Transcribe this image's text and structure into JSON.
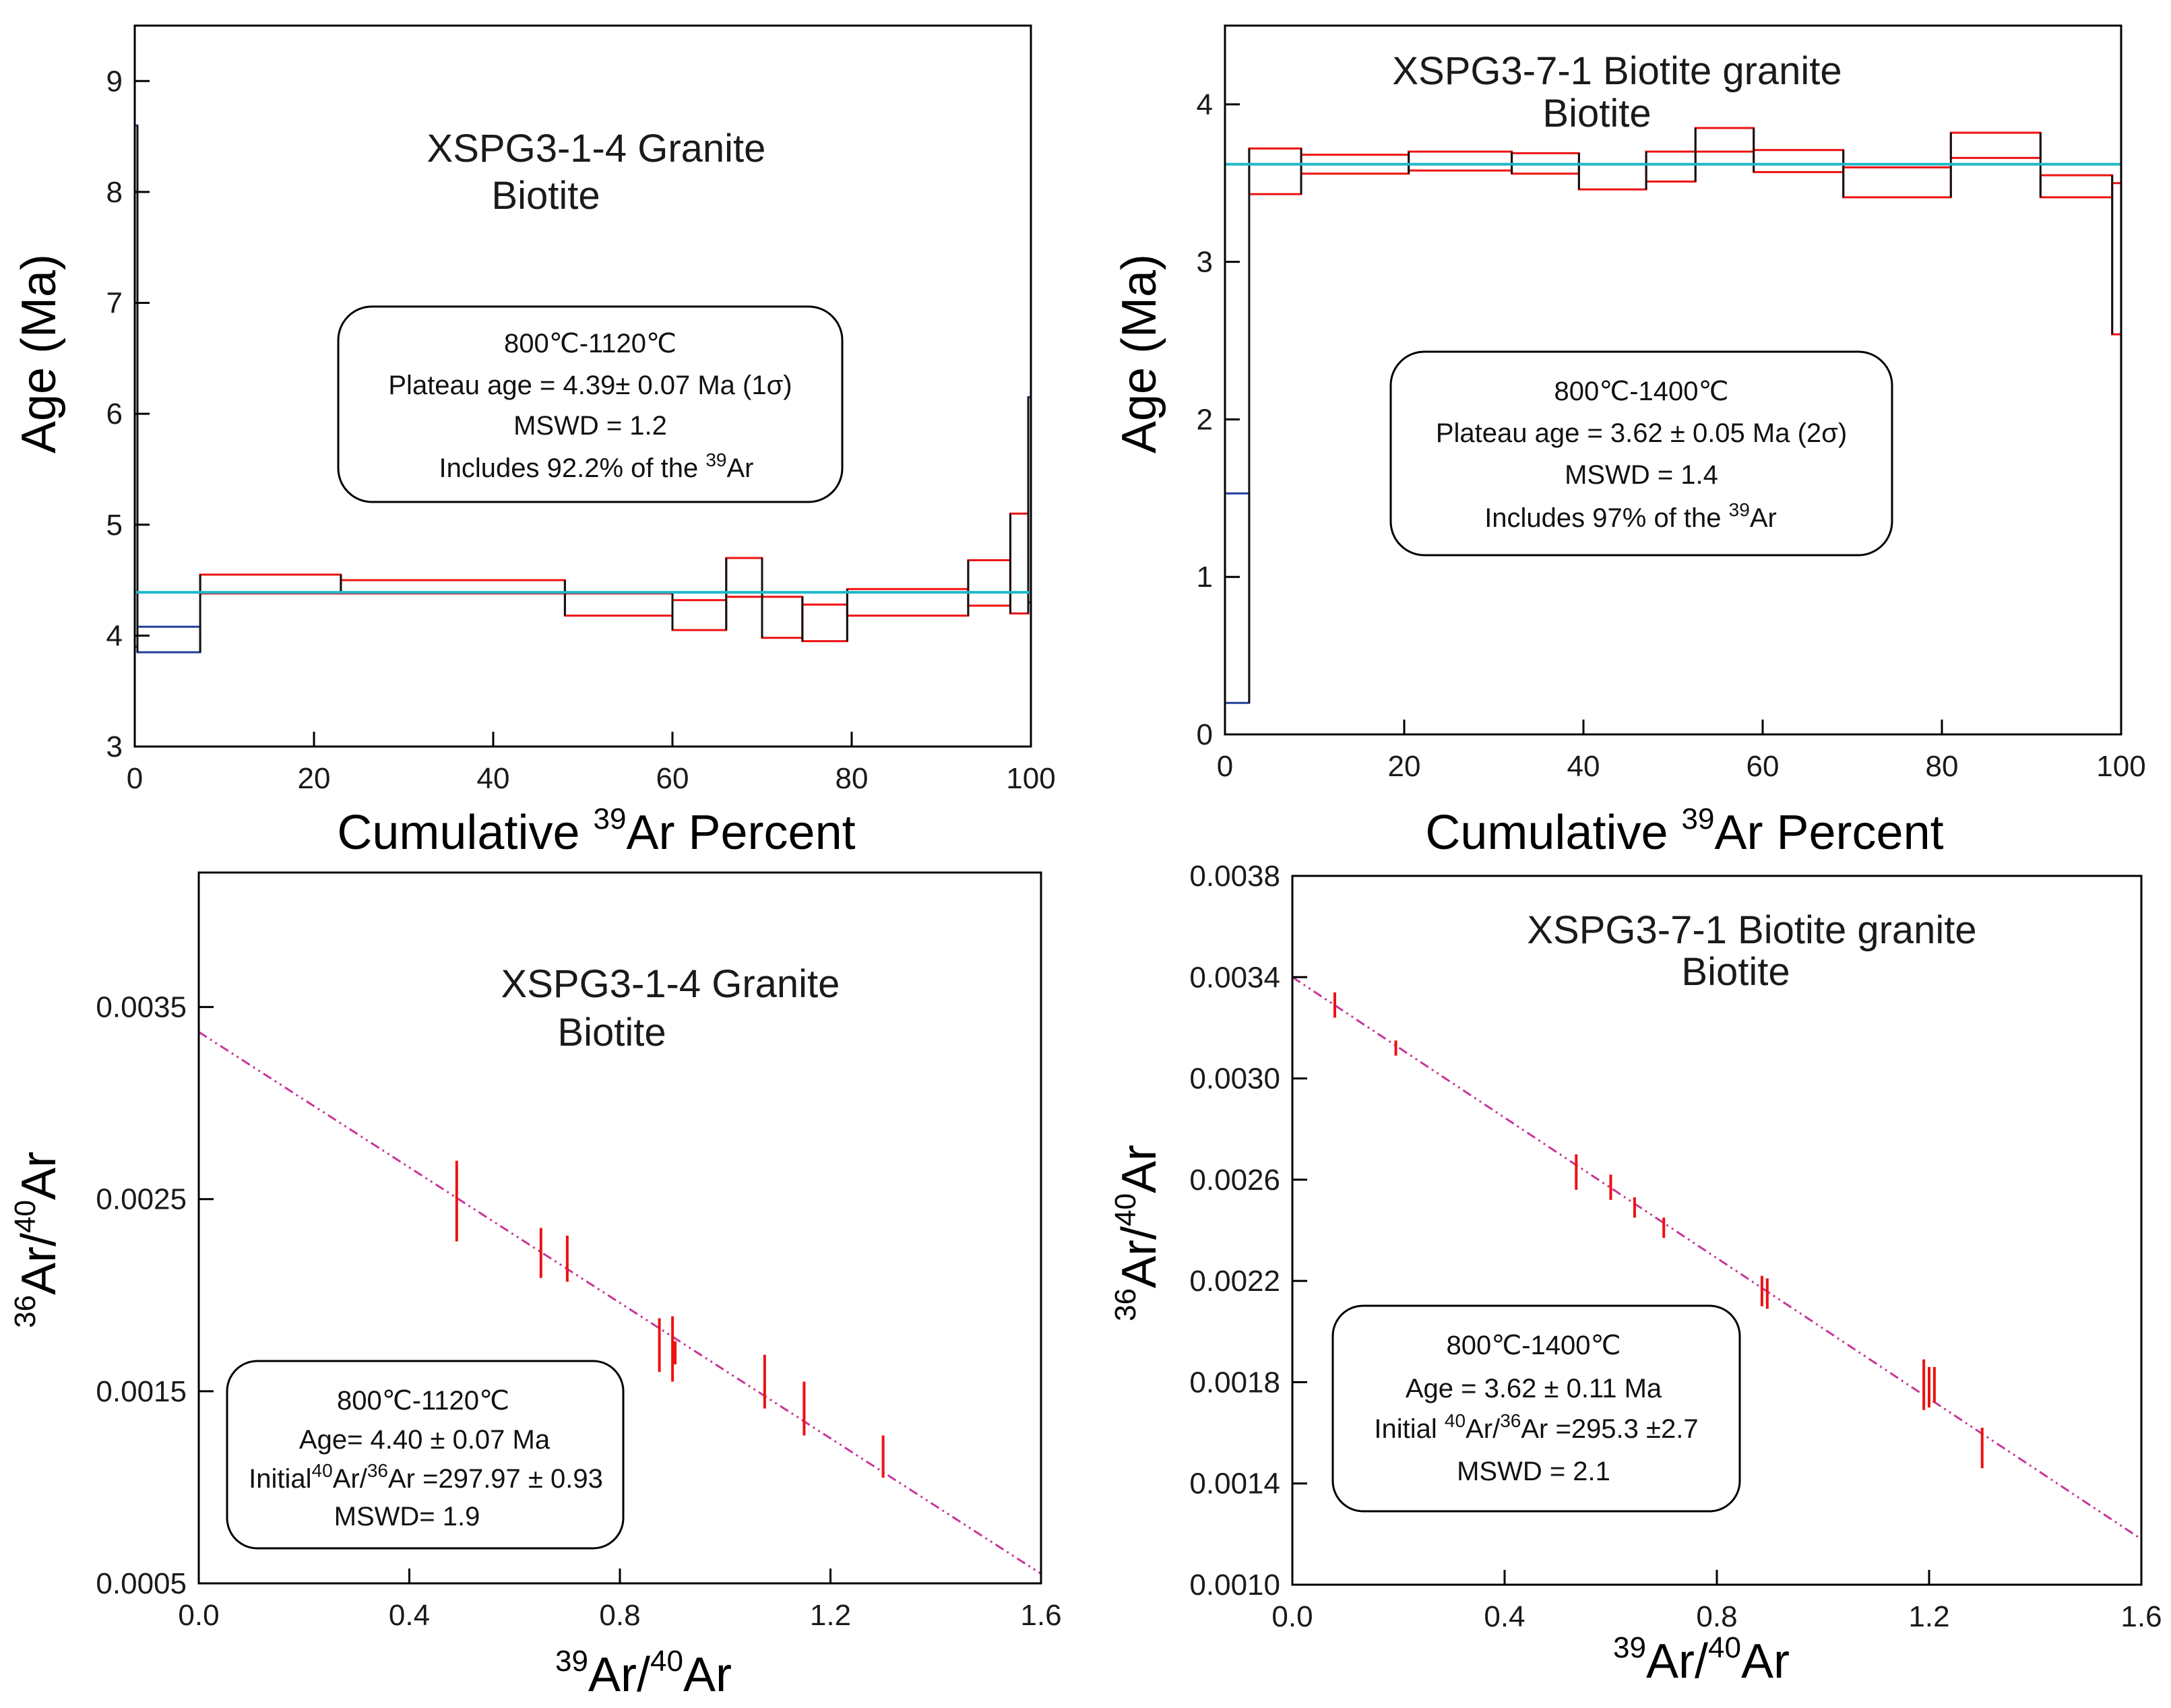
{
  "chart_data": [
    {
      "id": "c1",
      "type": "step",
      "title_lines": [
        "XSPG3-1-4 Granite",
        "Biotite"
      ],
      "xlabel_main": "Cumulative ",
      "xlabel_sup": "39",
      "xlabel_tail": "Ar Percent",
      "ylabel": "Age (Ma)",
      "xlim": [
        0,
        100
      ],
      "ylim": [
        3,
        9.5
      ],
      "xticks": [
        0,
        20,
        40,
        60,
        80,
        100
      ],
      "yticks": [
        3,
        4,
        5,
        6,
        7,
        8,
        9
      ],
      "plateau": 4.39,
      "plateau_color": "#1fb8c8",
      "steps": [
        {
          "x0": 0,
          "x1": 0.3,
          "lo": 3.9,
          "hi": 8.6,
          "color": "#1f3f9a"
        },
        {
          "x0": 0.3,
          "x1": 7.3,
          "lo": 3.85,
          "hi": 4.08,
          "color": "#1f3f9a"
        },
        {
          "x0": 7.3,
          "x1": 23,
          "lo": 4.38,
          "hi": 4.55,
          "color": "#ee1111"
        },
        {
          "x0": 23,
          "x1": 48,
          "lo": 4.38,
          "hi": 4.5,
          "color": "#ee1111"
        },
        {
          "x0": 48,
          "x1": 60,
          "lo": 4.18,
          "hi": 4.38,
          "color": "#ee1111"
        },
        {
          "x0": 60,
          "x1": 66,
          "lo": 4.05,
          "hi": 4.32,
          "color": "#ee1111"
        },
        {
          "x0": 66,
          "x1": 70,
          "lo": 4.35,
          "hi": 4.7,
          "color": "#ee1111"
        },
        {
          "x0": 70,
          "x1": 74.5,
          "lo": 3.98,
          "hi": 4.35,
          "color": "#ee1111"
        },
        {
          "x0": 74.5,
          "x1": 79.5,
          "lo": 3.95,
          "hi": 4.28,
          "color": "#ee1111"
        },
        {
          "x0": 79.5,
          "x1": 93,
          "lo": 4.18,
          "hi": 4.42,
          "color": "#ee1111"
        },
        {
          "x0": 93,
          "x1": 97.7,
          "lo": 4.27,
          "hi": 4.68,
          "color": "#ee1111"
        },
        {
          "x0": 97.7,
          "x1": 99.7,
          "lo": 4.2,
          "hi": 5.1,
          "color": "#ee1111"
        },
        {
          "x0": 99.7,
          "x1": 100,
          "lo": 4.3,
          "hi": 6.15,
          "color": "#1f3f9a"
        }
      ],
      "info_lines": [
        "800℃-1120℃",
        "Plateau age = 4.39± 0.07 Ma  (1σ)",
        "MSWD = 1.2",
        "Includes 92.2% of the ",
        "39",
        "Ar"
      ]
    },
    {
      "id": "c2",
      "type": "step",
      "title_lines": [
        "XSPG3-7-1 Biotite granite",
        "Biotite"
      ],
      "xlabel_main": "Cumulative ",
      "xlabel_sup": "39",
      "xlabel_tail": "Ar Percent",
      "ylabel": "Age (Ma)",
      "xlim": [
        0,
        100
      ],
      "ylim": [
        0,
        4.5
      ],
      "xticks": [
        0,
        20,
        40,
        60,
        80,
        100
      ],
      "yticks": [
        0,
        1,
        2,
        3,
        4
      ],
      "plateau": 3.62,
      "plateau_color": "#1fb8c8",
      "steps": [
        {
          "x0": 0,
          "x1": 2.7,
          "lo": 0.2,
          "hi": 1.53,
          "color": "#1f3f9a"
        },
        {
          "x0": 2.7,
          "x1": 8.5,
          "lo": 3.43,
          "hi": 3.72,
          "color": "#ee1111"
        },
        {
          "x0": 8.5,
          "x1": 20.5,
          "lo": 3.56,
          "hi": 3.68,
          "color": "#ee1111"
        },
        {
          "x0": 20.5,
          "x1": 32,
          "lo": 3.58,
          "hi": 3.7,
          "color": "#ee1111"
        },
        {
          "x0": 32,
          "x1": 39.5,
          "lo": 3.56,
          "hi": 3.69,
          "color": "#ee1111"
        },
        {
          "x0": 39.5,
          "x1": 47,
          "lo": 3.46,
          "hi": 3.62,
          "color": "#ee1111"
        },
        {
          "x0": 47,
          "x1": 52.5,
          "lo": 3.51,
          "hi": 3.7,
          "color": "#ee1111"
        },
        {
          "x0": 52.5,
          "x1": 59,
          "lo": 3.7,
          "hi": 3.85,
          "color": "#ee1111"
        },
        {
          "x0": 59,
          "x1": 69,
          "lo": 3.57,
          "hi": 3.71,
          "color": "#ee1111"
        },
        {
          "x0": 69,
          "x1": 81,
          "lo": 3.41,
          "hi": 3.6,
          "color": "#ee1111"
        },
        {
          "x0": 81,
          "x1": 91,
          "lo": 3.66,
          "hi": 3.82,
          "color": "#ee1111"
        },
        {
          "x0": 91,
          "x1": 99,
          "lo": 3.41,
          "hi": 3.55,
          "color": "#ee1111"
        },
        {
          "x0": 99,
          "x1": 100,
          "lo": 2.54,
          "hi": 3.5,
          "color": "#ee1111"
        }
      ],
      "info_lines": [
        "800℃-1400℃",
        "Plateau age = 3.62 ± 0.05 Ma  (2σ)",
        "MSWD = 1.4",
        "Includes  97% of the ",
        "39",
        "Ar"
      ]
    },
    {
      "id": "c3",
      "type": "scatter",
      "title_lines": [
        "XSPG3-1-4 Granite",
        "Biotite"
      ],
      "xlabel_sup": "39",
      "xlabel_mid": "Ar/",
      "xlabel_sup2": "40",
      "xlabel_tail": "Ar",
      "ylabel_sup": "36",
      "ylabel_mid": "Ar/",
      "ylabel_sup2": "40",
      "ylabel_tail": "Ar",
      "xlim": [
        0,
        1.6
      ],
      "ylim": [
        0.0005,
        0.0042
      ],
      "xticks": [
        "0.0",
        "0.4",
        "0.8",
        "1.2",
        "1.6"
      ],
      "xtick_values": [
        0,
        0.4,
        0.8,
        1.2,
        1.6
      ],
      "yticks": [
        "0.0005",
        "0.0015",
        "0.0025",
        "0.0035"
      ],
      "ytick_values": [
        0.0005,
        0.0015,
        0.0025,
        0.0035
      ],
      "line": {
        "x0": 0,
        "y0": 0.00337,
        "x1": 1.6,
        "y1": 0.00055,
        "color": "#c8359a"
      },
      "points": [
        {
          "x": 0.49,
          "y": 0.00249,
          "err": 0.00021
        },
        {
          "x": 0.65,
          "y": 0.00222,
          "err": 0.00013
        },
        {
          "x": 0.7,
          "y": 0.00219,
          "err": 0.00012
        },
        {
          "x": 0.875,
          "y": 0.00174,
          "err": 0.00014
        },
        {
          "x": 0.9,
          "y": 0.00172,
          "err": 0.00017
        },
        {
          "x": 0.905,
          "y": 0.0017,
          "err": 6e-05
        },
        {
          "x": 1.075,
          "y": 0.00155,
          "err": 0.00014
        },
        {
          "x": 1.15,
          "y": 0.00141,
          "err": 0.00014
        },
        {
          "x": 1.3,
          "y": 0.00116,
          "err": 0.00011
        }
      ],
      "point_color": "#ee1111",
      "info_lines": [
        "800℃-1120℃",
        "Age= 4.40 ± 0.07 Ma",
        "Initial",
        "40",
        "Ar/",
        "36",
        "Ar =297.97 ± 0.93",
        "MSWD= 1.9"
      ]
    },
    {
      "id": "c4",
      "type": "scatter",
      "title_lines": [
        "XSPG3-7-1 Biotite granite",
        "Biotite"
      ],
      "xlabel_sup": "39",
      "xlabel_mid": "Ar/",
      "xlabel_sup2": "40",
      "xlabel_tail": "Ar",
      "ylabel_sup": "36",
      "ylabel_mid": "Ar/",
      "ylabel_sup2": "40",
      "ylabel_tail": "Ar",
      "xlim": [
        0,
        1.6
      ],
      "ylim": [
        0.001,
        0.0038
      ],
      "xticks": [
        "0.0",
        "0.4",
        "0.8",
        "1.2",
        "1.6"
      ],
      "xtick_values": [
        0,
        0.4,
        0.8,
        1.2,
        1.6
      ],
      "yticks": [
        "0.0010",
        "0.0014",
        "0.0018",
        "0.0022",
        "0.0026",
        "0.0030",
        "0.0034",
        "0.0038"
      ],
      "ytick_values": [
        0.001,
        0.0014,
        0.0018,
        0.0022,
        0.0026,
        0.003,
        0.0034,
        0.0038
      ],
      "line": {
        "x0": 0,
        "y0": 0.0034,
        "x1": 1.6,
        "y1": 0.00118,
        "color": "#c8359a"
      },
      "points": [
        {
          "x": 0.08,
          "y": 0.00329,
          "err": 5e-05
        },
        {
          "x": 0.195,
          "y": 0.00312,
          "err": 3e-05
        },
        {
          "x": 0.535,
          "y": 0.00263,
          "err": 7e-05
        },
        {
          "x": 0.6,
          "y": 0.00257,
          "err": 5e-05
        },
        {
          "x": 0.645,
          "y": 0.00249,
          "err": 4e-05
        },
        {
          "x": 0.7,
          "y": 0.00241,
          "err": 4e-05
        },
        {
          "x": 0.885,
          "y": 0.00216,
          "err": 6e-05
        },
        {
          "x": 0.895,
          "y": 0.00215,
          "err": 6e-05
        },
        {
          "x": 1.19,
          "y": 0.00179,
          "err": 0.0001
        },
        {
          "x": 1.2,
          "y": 0.00178,
          "err": 8e-05
        },
        {
          "x": 1.21,
          "y": 0.00179,
          "err": 7e-05
        },
        {
          "x": 1.3,
          "y": 0.00154,
          "err": 8e-05
        }
      ],
      "point_color": "#ee1111",
      "info_lines": [
        "800℃-1400℃",
        "Age = 3.62 ± 0.11 Ma",
        "Initial ",
        "40",
        "Ar/",
        "36",
        "Ar =295.3 ±2.7",
        "MSWD = 2.1"
      ]
    }
  ]
}
